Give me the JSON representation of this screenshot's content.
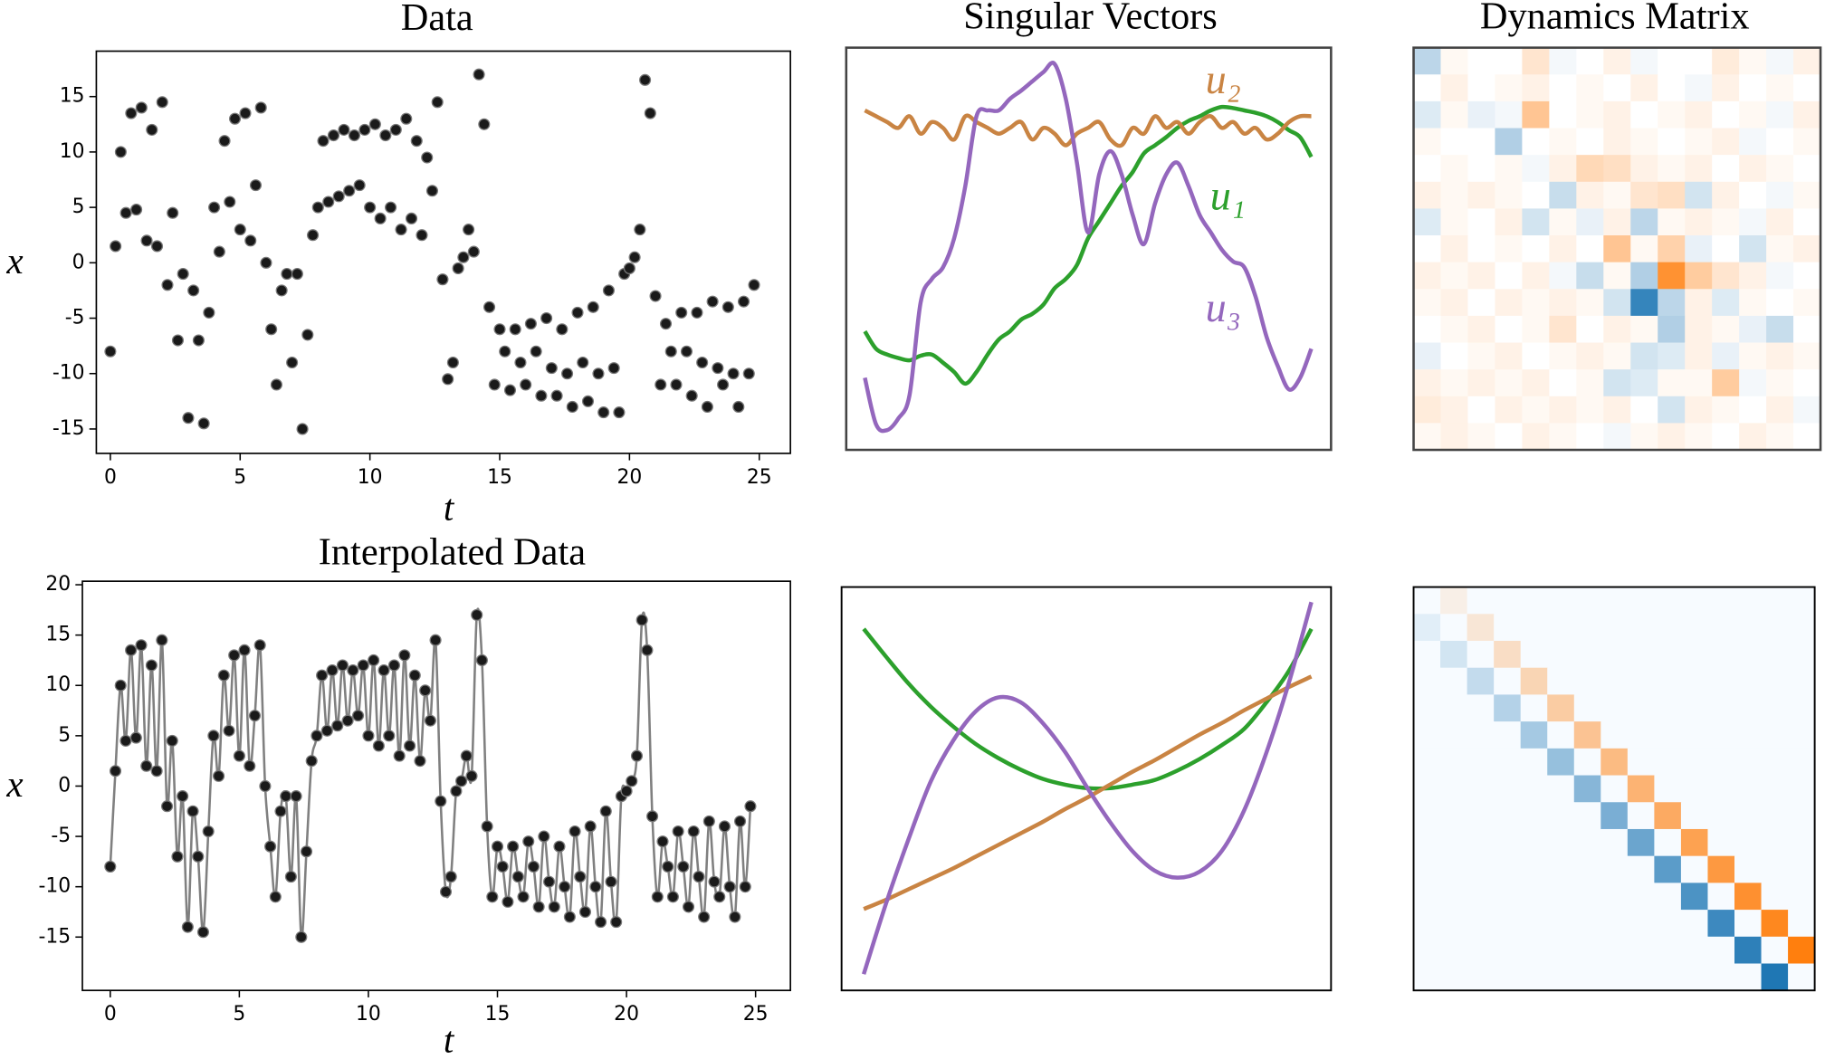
{
  "chart_data": [
    {
      "type": "scatter",
      "title": "Data",
      "xlabel": "t",
      "ylabel": "x",
      "color": "#1a1a1a",
      "x": [
        0,
        0.2,
        0.4,
        0.6,
        0.8,
        1,
        1.2,
        1.4,
        1.6,
        1.8,
        2,
        2.2,
        2.4,
        2.6,
        2.8,
        3,
        3.2,
        3.4,
        3.6,
        3.8,
        4,
        4.2,
        4.4,
        4.6,
        4.8,
        5,
        5.2,
        5.4,
        5.6,
        5.8,
        6,
        6.2,
        6.4,
        6.6,
        6.8,
        7,
        7.2,
        7.4,
        7.6,
        7.8,
        8,
        8.2,
        8.4,
        8.6,
        8.8,
        9,
        9.2,
        9.4,
        9.6,
        9.8,
        10,
        10.2,
        10.4,
        10.6,
        10.8,
        11,
        11.2,
        11.4,
        11.6,
        11.8,
        12,
        12.2,
        12.4,
        12.6,
        12.8,
        13,
        13.2,
        13.4,
        13.6,
        13.8,
        14,
        14.2,
        14.4,
        14.6,
        14.8,
        15,
        15.2,
        15.4,
        15.6,
        15.8,
        16,
        16.2,
        16.4,
        16.6,
        16.8,
        17,
        17.2,
        17.4,
        17.6,
        17.8,
        18,
        18.2,
        18.4,
        18.6,
        18.8,
        19,
        19.2,
        19.4,
        19.6,
        19.8,
        20,
        20.2,
        20.4,
        20.6,
        20.8,
        21,
        21.2,
        21.4,
        21.6,
        21.8,
        22,
        22.2,
        22.4,
        22.6,
        22.8,
        23,
        23.2,
        23.4,
        23.6,
        23.8,
        24,
        24.2,
        24.4,
        24.6,
        24.8
      ],
      "values": [
        -8,
        1.5,
        10,
        4.5,
        13.5,
        4.8,
        14,
        2,
        12,
        1.5,
        14.5,
        -2,
        4.5,
        -7,
        -1,
        -14,
        -2.5,
        -7,
        -14.5,
        -4.5,
        5,
        1,
        11,
        5.5,
        13,
        3,
        13.5,
        2,
        7,
        14,
        0,
        -6,
        -11,
        -2.5,
        -1,
        -9,
        -1,
        -15,
        -6.5,
        2.5,
        5,
        11,
        5.5,
        11.5,
        6,
        12,
        6.5,
        11.5,
        7,
        12,
        5,
        12.5,
        4,
        11.5,
        5,
        12,
        3,
        13,
        4,
        11,
        2.5,
        9.5,
        6.5,
        14.5,
        -1.5,
        -10.5,
        -9,
        -0.5,
        0.5,
        3,
        1,
        17,
        12.5,
        -4,
        -11,
        -6,
        -8,
        -11.5,
        -6,
        -9,
        -11,
        -5.5,
        -8,
        -12,
        -5,
        -9.5,
        -12,
        -6,
        -10,
        -13,
        -4.5,
        -9,
        -12.5,
        -4,
        -10,
        -13.5,
        -2.5,
        -9.5,
        -13.5,
        -1,
        -0.5,
        0.5,
        3,
        16.5,
        13.5,
        -3,
        -11,
        -5.5,
        -8,
        -11,
        -4.5,
        -8,
        -12,
        -4.5,
        -9,
        -13,
        -3.5,
        -9.5,
        -11,
        -4,
        -10,
        -13,
        -3.5,
        -10,
        -2
      ],
      "xlim": [
        -0.54,
        26.2
      ],
      "ylim": [
        -17.2,
        19.1
      ],
      "xticks": [
        0,
        5,
        10,
        15,
        20,
        25
      ],
      "yticks": [
        -15,
        -10,
        -5,
        0,
        5,
        10,
        15
      ]
    },
    {
      "type": "line",
      "title": "Interpolated Data",
      "xlabel": "t",
      "ylabel": "x",
      "color": "#1a1a1a",
      "line_color": "#808080",
      "markers": true,
      "x": [
        0,
        0.2,
        0.4,
        0.6,
        0.8,
        1,
        1.2,
        1.4,
        1.6,
        1.8,
        2,
        2.2,
        2.4,
        2.6,
        2.8,
        3,
        3.2,
        3.4,
        3.6,
        3.8,
        4,
        4.2,
        4.4,
        4.6,
        4.8,
        5,
        5.2,
        5.4,
        5.6,
        5.8,
        6,
        6.2,
        6.4,
        6.6,
        6.8,
        7,
        7.2,
        7.4,
        7.6,
        7.8,
        8,
        8.2,
        8.4,
        8.6,
        8.8,
        9,
        9.2,
        9.4,
        9.6,
        9.8,
        10,
        10.2,
        10.4,
        10.6,
        10.8,
        11,
        11.2,
        11.4,
        11.6,
        11.8,
        12,
        12.2,
        12.4,
        12.6,
        12.8,
        13,
        13.2,
        13.4,
        13.6,
        13.8,
        14,
        14.2,
        14.4,
        14.6,
        14.8,
        15,
        15.2,
        15.4,
        15.6,
        15.8,
        16,
        16.2,
        16.4,
        16.6,
        16.8,
        17,
        17.2,
        17.4,
        17.6,
        17.8,
        18,
        18.2,
        18.4,
        18.6,
        18.8,
        19,
        19.2,
        19.4,
        19.6,
        19.8,
        20,
        20.2,
        20.4,
        20.6,
        20.8,
        21,
        21.2,
        21.4,
        21.6,
        21.8,
        22,
        22.2,
        22.4,
        22.6,
        22.8,
        23,
        23.2,
        23.4,
        23.6,
        23.8,
        24,
        24.2,
        24.4,
        24.6,
        24.8
      ],
      "values": [
        -8,
        1.5,
        10,
        4.5,
        13.5,
        4.8,
        14,
        2,
        12,
        1.5,
        14.5,
        -2,
        4.5,
        -7,
        -1,
        -14,
        -2.5,
        -7,
        -14.5,
        -4.5,
        5,
        1,
        11,
        5.5,
        13,
        3,
        13.5,
        2,
        7,
        14,
        0,
        -6,
        -11,
        -2.5,
        -1,
        -9,
        -1,
        -15,
        -6.5,
        2.5,
        5,
        11,
        5.5,
        11.5,
        6,
        12,
        6.5,
        11.5,
        7,
        12,
        5,
        12.5,
        4,
        11.5,
        5,
        12,
        3,
        13,
        4,
        11,
        2.5,
        9.5,
        6.5,
        14.5,
        -1.5,
        -10.5,
        -9,
        -0.5,
        0.5,
        3,
        1,
        17,
        12.5,
        -4,
        -11,
        -6,
        -8,
        -11.5,
        -6,
        -9,
        -11,
        -5.5,
        -8,
        -12,
        -5,
        -9.5,
        -12,
        -6,
        -10,
        -13,
        -4.5,
        -9,
        -12.5,
        -4,
        -10,
        -13.5,
        -2.5,
        -9.5,
        -13.5,
        -1,
        -0.5,
        0.5,
        3,
        16.5,
        13.5,
        -3,
        -11,
        -5.5,
        -8,
        -11,
        -4.5,
        -8,
        -12,
        -4.5,
        -9,
        -13,
        -3.5,
        -9.5,
        -11,
        -4,
        -10,
        -13,
        -3.5,
        -10,
        -2
      ],
      "xlim": [
        -1.08,
        26.35
      ],
      "ylim": [
        -20.3,
        20.35
      ],
      "xticks": [
        0,
        5,
        10,
        15,
        20,
        25
      ],
      "yticks": [
        -15,
        -10,
        -5,
        0,
        5,
        10,
        15,
        20
      ]
    },
    {
      "type": "line",
      "title": "Singular Vectors",
      "x": [
        0,
        1,
        2,
        3,
        4,
        5,
        6,
        7,
        8,
        9,
        10,
        11,
        12,
        13,
        14,
        15,
        16,
        17,
        18,
        19,
        20,
        21,
        22,
        23,
        24,
        25,
        26,
        27,
        28,
        29,
        30,
        31,
        32,
        33,
        34,
        35,
        36,
        37,
        38,
        39,
        40
      ],
      "series": [
        {
          "name": "u₁",
          "color": "#2ca02c",
          "values": [
            10.2,
            8.7,
            8.2,
            7.9,
            7.7,
            8.1,
            8.2,
            7.5,
            6.7,
            5.7,
            6.7,
            8.2,
            9.5,
            10.2,
            11.2,
            11.7,
            12.5,
            13.9,
            14.7,
            15.9,
            18.2,
            19.7,
            21.2,
            22.7,
            23.9,
            25.5,
            26.2,
            26.9,
            27.7,
            28.3,
            28.7,
            29.2,
            29.5,
            29.4,
            29.2,
            29.0,
            28.7,
            28.2,
            27.5,
            26.9,
            25.2
          ]
        },
        {
          "name": "u₂",
          "color": "#c98443",
          "values": [
            29.2,
            28.7,
            28.2,
            27.7,
            28.7,
            27.2,
            28.2,
            27.7,
            26.7,
            28.7,
            28.2,
            27.7,
            27.2,
            27.7,
            28.2,
            26.7,
            27.7,
            27.2,
            26.2,
            27.2,
            27.7,
            28.2,
            26.7,
            26.2,
            27.7,
            27.2,
            28.7,
            27.7,
            28.2,
            27.2,
            28.2,
            28.7,
            27.7,
            28.2,
            27.2,
            27.7,
            26.7,
            27.2,
            28.2,
            28.7,
            28.7
          ]
        },
        {
          "name": "u₃",
          "color": "#9467bd",
          "values": [
            6.2,
            2.2,
            1.7,
            2.7,
            4.7,
            12.7,
            14.7,
            15.7,
            18.2,
            22.7,
            28.7,
            29.2,
            29.2,
            30.2,
            30.9,
            31.7,
            32.5,
            33.2,
            30.2,
            24.7,
            18.7,
            23.7,
            25.7,
            23.7,
            20.2,
            17.7,
            21.2,
            23.7,
            24.7,
            22.7,
            20.2,
            18.7,
            17.2,
            16.2,
            15.7,
            13.2,
            9.7,
            7.2,
            5.2,
            6.2,
            8.7
          ]
        }
      ],
      "xlim": [
        -1.67,
        41.77
      ],
      "ylim": [
        0,
        34.6
      ]
    },
    {
      "type": "heatmap",
      "title": "Dynamics Matrix",
      "vlim": [
        -1,
        1
      ],
      "colors": [
        "#1f77b4",
        "#ffffff",
        "#ff7f0e"
      ],
      "z": [
        [
          -0.3,
          0.05,
          0,
          0,
          0.2,
          -0.05,
          0,
          0.1,
          -0.05,
          0,
          0,
          0.15,
          0.05,
          -0.05,
          0.1
        ],
        [
          0,
          0.1,
          0,
          0.05,
          0.1,
          0,
          0.05,
          0,
          0.1,
          0,
          -0.05,
          0.1,
          0,
          0.05,
          0
        ],
        [
          -0.15,
          0.05,
          -0.1,
          -0.05,
          0.45,
          0,
          0.05,
          0.1,
          0,
          0.05,
          0.1,
          0,
          0.05,
          -0.05,
          0.1
        ],
        [
          0.05,
          0,
          0,
          -0.35,
          0,
          0.05,
          0,
          0.1,
          0.05,
          0,
          0.05,
          0.1,
          -0.05,
          0,
          0.05
        ],
        [
          0,
          0.05,
          0,
          0.05,
          -0.05,
          0.1,
          0.3,
          0.25,
          0.1,
          0.05,
          0.1,
          0,
          0.1,
          0.05,
          0
        ],
        [
          0.1,
          0.05,
          0.1,
          0.05,
          0,
          -0.25,
          0.1,
          0.05,
          0.2,
          0.25,
          -0.2,
          0.1,
          0,
          -0.05,
          0.05
        ],
        [
          -0.15,
          0.05,
          0,
          0.1,
          -0.2,
          0.05,
          -0.1,
          0.1,
          -0.3,
          0.05,
          0.1,
          0.05,
          -0.05,
          0.1,
          0
        ],
        [
          0,
          0.1,
          0,
          0.05,
          0,
          0.1,
          0,
          0.45,
          0.05,
          0.35,
          -0.1,
          0,
          -0.2,
          0.05,
          0.1
        ],
        [
          0.1,
          0.05,
          0.1,
          0,
          0.1,
          -0.05,
          -0.25,
          0.05,
          -0.35,
          0.85,
          0.4,
          0.2,
          0.1,
          -0.05,
          0
        ],
        [
          0.05,
          0.1,
          0,
          0.1,
          0.05,
          0.1,
          0.05,
          -0.2,
          -0.9,
          -0.3,
          0.1,
          -0.15,
          0.05,
          0,
          0.05
        ],
        [
          0,
          0.05,
          0.1,
          0,
          0.05,
          0.2,
          0,
          0.1,
          0.05,
          -0.35,
          0.1,
          0.05,
          -0.1,
          -0.25,
          0
        ],
        [
          -0.1,
          0,
          0.05,
          0.1,
          0,
          0.05,
          0.1,
          0.05,
          -0.2,
          -0.15,
          0.1,
          -0.1,
          0.05,
          0.1,
          0.05
        ],
        [
          0.1,
          0.05,
          0.1,
          0.05,
          0.1,
          0,
          0.05,
          -0.2,
          -0.15,
          0.05,
          0.05,
          0.4,
          -0.05,
          0.05,
          0
        ],
        [
          0.15,
          0.1,
          0,
          0.1,
          0.05,
          0.1,
          0.05,
          0.1,
          0,
          -0.2,
          0.1,
          0.05,
          0,
          0.1,
          -0.05
        ],
        [
          0.05,
          0.1,
          0.05,
          0,
          0.1,
          0.05,
          0,
          -0.05,
          0.05,
          0.1,
          0.05,
          0,
          0.1,
          0.05,
          0
        ]
      ]
    },
    {
      "type": "line",
      "x": [
        0,
        1,
        2,
        3,
        4,
        5,
        6,
        7,
        8,
        9,
        10,
        11,
        12,
        13,
        14,
        15,
        16,
        17,
        18,
        19,
        20
      ],
      "series": [
        {
          "color": "#2ca02c",
          "values": [
            31.1,
            28.7,
            26.4,
            24.4,
            22.7,
            21.2,
            20.0,
            19.0,
            18.2,
            17.7,
            17.4,
            17.4,
            17.7,
            18.1,
            18.9,
            19.9,
            21.1,
            22.5,
            24.8,
            27.5,
            31.1
          ]
        },
        {
          "color": "#c98443",
          "values": [
            7.0,
            7.8,
            8.7,
            9.6,
            10.5,
            11.5,
            12.5,
            13.5,
            14.5,
            15.6,
            16.6,
            17.7,
            18.8,
            19.8,
            20.9,
            22.0,
            23.0,
            24.1,
            25.1,
            26.1,
            27.0
          ]
        },
        {
          "color": "#9467bd",
          "values": [
            1.4,
            7.5,
            13,
            18,
            21.5,
            24,
            25.2,
            24.8,
            23,
            20.5,
            17.4,
            14.5,
            12,
            10.3,
            9.7,
            10.2,
            12,
            15.5,
            20.5,
            26.5,
            33.4
          ]
        }
      ],
      "xlim": [
        -0.99,
        20.88
      ],
      "ylim": [
        0,
        34.7
      ]
    },
    {
      "type": "heatmap",
      "vlim": [
        -1,
        1
      ],
      "colors": [
        "#1f77b4",
        "#f7fbff",
        "#ff7f0e"
      ],
      "z": [
        [
          0,
          0.1,
          0,
          0,
          0,
          0,
          0,
          0,
          0,
          0,
          0,
          0,
          0,
          0,
          0
        ],
        [
          -0.1,
          0,
          0.17,
          0,
          0,
          0,
          0,
          0,
          0,
          0,
          0,
          0,
          0,
          0,
          0
        ],
        [
          0,
          -0.17,
          0,
          0.24,
          0,
          0,
          0,
          0,
          0,
          0,
          0,
          0,
          0,
          0,
          0
        ],
        [
          0,
          0,
          -0.24,
          0,
          0.31,
          0,
          0,
          0,
          0,
          0,
          0,
          0,
          0,
          0,
          0
        ],
        [
          0,
          0,
          0,
          -0.31,
          0,
          0.38,
          0,
          0,
          0,
          0,
          0,
          0,
          0,
          0,
          0
        ],
        [
          0,
          0,
          0,
          0,
          -0.38,
          0,
          0.45,
          0,
          0,
          0,
          0,
          0,
          0,
          0,
          0
        ],
        [
          0,
          0,
          0,
          0,
          0,
          -0.45,
          0,
          0.52,
          0,
          0,
          0,
          0,
          0,
          0,
          0
        ],
        [
          0,
          0,
          0,
          0,
          0,
          0,
          -0.52,
          0,
          0.58,
          0,
          0,
          0,
          0,
          0,
          0
        ],
        [
          0,
          0,
          0,
          0,
          0,
          0,
          0,
          -0.58,
          0,
          0.65,
          0,
          0,
          0,
          0,
          0
        ],
        [
          0,
          0,
          0,
          0,
          0,
          0,
          0,
          0,
          -0.65,
          0,
          0.72,
          0,
          0,
          0,
          0
        ],
        [
          0,
          0,
          0,
          0,
          0,
          0,
          0,
          0,
          0,
          -0.72,
          0,
          0.79,
          0,
          0,
          0
        ],
        [
          0,
          0,
          0,
          0,
          0,
          0,
          0,
          0,
          0,
          0,
          -0.79,
          0,
          0.86,
          0,
          0
        ],
        [
          0,
          0,
          0,
          0,
          0,
          0,
          0,
          0,
          0,
          0,
          0,
          -0.86,
          0,
          0.93,
          0
        ],
        [
          0,
          0,
          0,
          0,
          0,
          0,
          0,
          0,
          0,
          0,
          0,
          0,
          -0.93,
          0,
          1
        ],
        [
          0,
          0,
          0,
          0,
          0,
          0,
          0,
          0,
          0,
          0,
          0,
          0,
          0,
          -1,
          0
        ]
      ]
    }
  ]
}
